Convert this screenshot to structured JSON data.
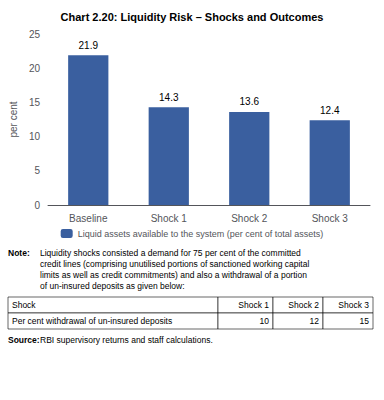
{
  "chart_data": {
    "type": "bar",
    "title": "Chart 2.20: Liquidity Risk – Shocks and Outcomes",
    "categories": [
      "Baseline",
      "Shock 1",
      "Shock 2",
      "Shock 3"
    ],
    "series": [
      {
        "name": "Liquid assets available to the system (per cent of total assets)",
        "color": "#3A5F9F",
        "values": [
          21.9,
          14.3,
          13.6,
          12.4
        ]
      }
    ],
    "ylabel": "per cent",
    "ylim": [
      0,
      25
    ],
    "yticks": [
      0,
      5,
      10,
      15,
      20,
      25
    ],
    "grid": false,
    "legend": "bottom",
    "data_labels": true,
    "note_label": "Note:",
    "note_lines": [
      "Liquidity shocks consisted a demand for 75 per cent of the committed",
      "credit lines (comprising unutilised portions of sanctioned working capital",
      "limits as well as credit commitments) and also a withdrawal of a portion",
      "of un-insured deposits as given below:"
    ],
    "table": {
      "headers": [
        "Shock",
        "Shock 1",
        "Shock 2",
        "Shock 3"
      ],
      "rows": [
        [
          "Per cent withdrawal of un-insured deposits",
          "10",
          "12",
          "15"
        ]
      ]
    },
    "source_label": "Source:",
    "source": "RBI supervisory returns and staff calculations."
  }
}
